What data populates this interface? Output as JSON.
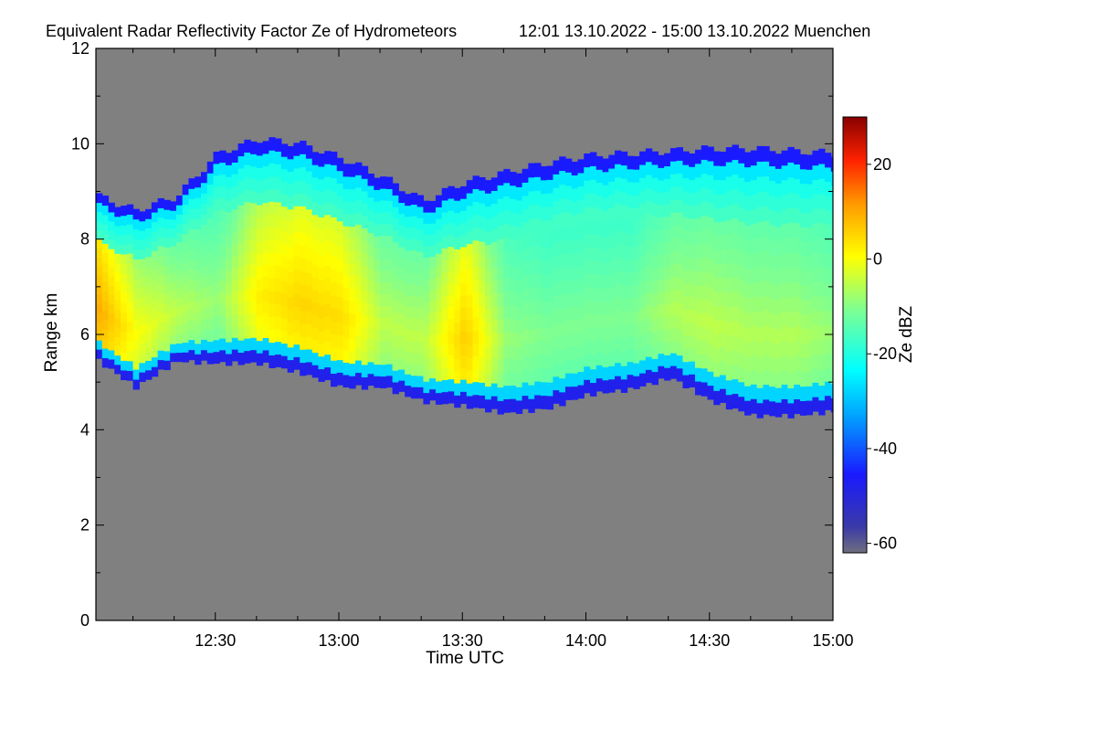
{
  "chart_data": {
    "type": "heatmap",
    "title": "Equivalent Radar Reflectivity Factor Ze of Hydrometeors",
    "subtitle": "12:01 13.10.2022 - 15:00 13.10.2022 Muenchen",
    "xlabel": "Time UTC",
    "ylabel": "Range km",
    "x_ticks": [
      "12:30",
      "13:00",
      "13:30",
      "14:00",
      "14:30",
      "15:00"
    ],
    "x_tick_minutes": [
      30,
      60,
      90,
      120,
      150,
      180
    ],
    "xlim_minutes": [
      1,
      180
    ],
    "y_ticks": [
      "0",
      "2",
      "4",
      "6",
      "8",
      "10",
      "12"
    ],
    "ylim": [
      0,
      12
    ],
    "colorbar": {
      "label": "Ze dBZ",
      "ticks": [
        "20",
        "0",
        "-20",
        "-40",
        "-60"
      ],
      "tick_values": [
        20,
        0,
        -20,
        -40,
        -60
      ],
      "range": [
        -62,
        30
      ]
    },
    "no_signal_color": "#808080",
    "cloud_layer": {
      "time_minutes": [
        1,
        10,
        20,
        30,
        40,
        50,
        60,
        70,
        80,
        90,
        100,
        110,
        120,
        130,
        140,
        150,
        160,
        170,
        180
      ],
      "base_km": [
        5.45,
        4.9,
        5.45,
        5.4,
        5.4,
        5.2,
        4.9,
        4.9,
        4.6,
        4.5,
        4.35,
        4.45,
        4.75,
        4.85,
        5.1,
        4.6,
        4.3,
        4.3,
        4.4
      ],
      "top_km": [
        8.9,
        8.6,
        8.9,
        9.8,
        10.1,
        10.0,
        9.7,
        9.3,
        8.8,
        9.2,
        9.4,
        9.6,
        9.75,
        9.8,
        9.85,
        9.9,
        9.9,
        9.85,
        9.8
      ],
      "core_peak_dbz": [
        10,
        0,
        -5,
        -8,
        2,
        5,
        4,
        -5,
        -5,
        6,
        -8,
        -10,
        -10,
        -10,
        -6,
        -5,
        -6,
        -6,
        -8
      ]
    }
  }
}
